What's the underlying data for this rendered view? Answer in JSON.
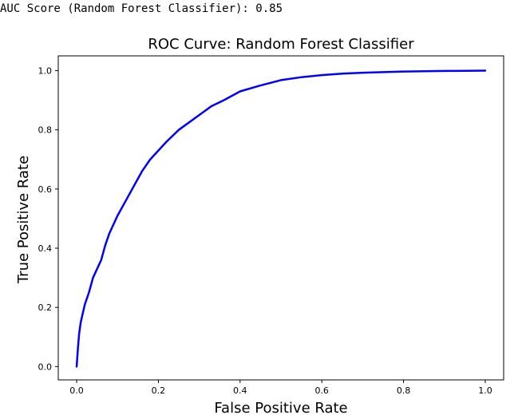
{
  "output": {
    "text": "AUC Score (Random Forest Classifier): 0.85"
  },
  "chart_data": {
    "type": "line",
    "title": "ROC Curve: Random Forest Classifier",
    "xlabel": "False Positive Rate",
    "ylabel": "True Positive Rate",
    "xlim": [
      -0.045,
      1.045
    ],
    "ylim": [
      -0.045,
      1.05
    ],
    "xticks": [
      "0.0",
      "0.2",
      "0.4",
      "0.6",
      "0.8",
      "1.0"
    ],
    "yticks": [
      "0.0",
      "0.2",
      "0.4",
      "0.6",
      "0.8",
      "1.0"
    ],
    "grid": false,
    "legend": "none",
    "series": [
      {
        "color": "#0000ff",
        "x": [
          0.0,
          0.003,
          0.006,
          0.01,
          0.015,
          0.02,
          0.03,
          0.04,
          0.05,
          0.06,
          0.07,
          0.08,
          0.09,
          0.1,
          0.12,
          0.14,
          0.16,
          0.18,
          0.2,
          0.22,
          0.25,
          0.28,
          0.3,
          0.33,
          0.36,
          0.4,
          0.45,
          0.5,
          0.55,
          0.6,
          0.65,
          0.7,
          0.75,
          0.8,
          0.85,
          0.9,
          0.95,
          1.0
        ],
        "y": [
          0.0,
          0.06,
          0.11,
          0.15,
          0.18,
          0.21,
          0.25,
          0.3,
          0.33,
          0.36,
          0.41,
          0.45,
          0.48,
          0.51,
          0.56,
          0.61,
          0.66,
          0.7,
          0.73,
          0.76,
          0.8,
          0.83,
          0.85,
          0.88,
          0.9,
          0.93,
          0.95,
          0.968,
          0.978,
          0.985,
          0.99,
          0.993,
          0.995,
          0.997,
          0.998,
          0.999,
          0.9995,
          1.0
        ]
      }
    ]
  }
}
